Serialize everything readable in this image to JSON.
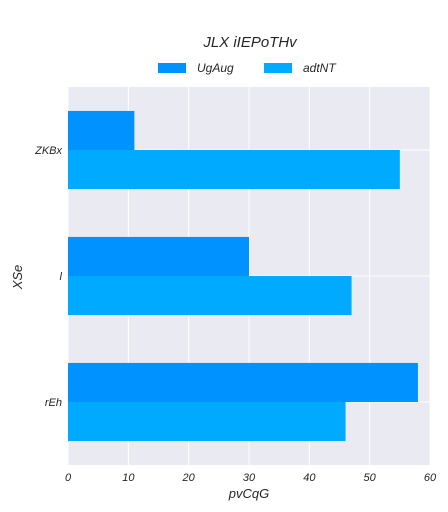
{
  "chart_data": {
    "type": "bar",
    "orientation": "horizontal",
    "title": "JLX iIEPoTHv",
    "xlabel": "pvCqG",
    "ylabel": "XSe",
    "categories": [
      "ZKBx",
      "l",
      "rEh"
    ],
    "series": [
      {
        "name": "UgAug",
        "values": [
          11,
          30,
          58
        ],
        "color": "#0092ff"
      },
      {
        "name": "adtNT",
        "values": [
          55,
          47,
          46
        ],
        "color": "#00aaff"
      }
    ],
    "xlim": [
      0,
      60
    ],
    "xticks": [
      0,
      10,
      20,
      30,
      40,
      50,
      60
    ],
    "grid": true,
    "legend_position": "top-center",
    "background": "#eaeaf2"
  }
}
